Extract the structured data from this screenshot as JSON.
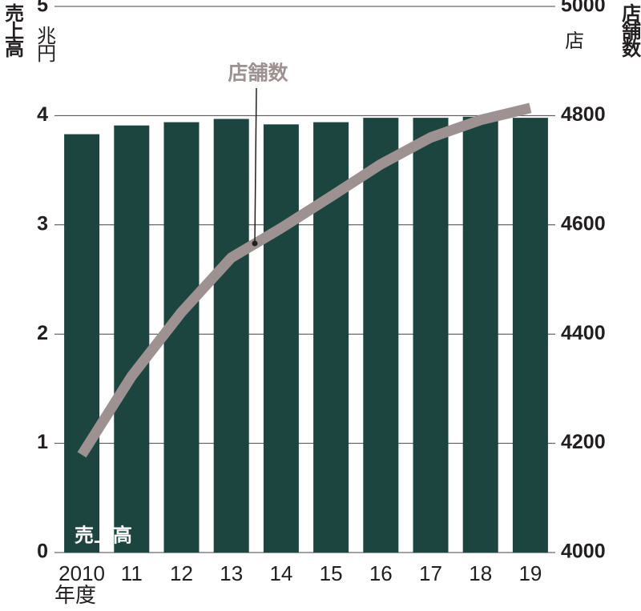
{
  "chart_data": {
    "type": "combo",
    "categories": [
      "2010",
      "11",
      "12",
      "13",
      "14",
      "15",
      "16",
      "17",
      "18",
      "19"
    ],
    "x_label": "年度",
    "y_label": "売上高",
    "y_unit": "兆円",
    "y2_label": "店舗数",
    "y2_unit": "店",
    "ylim": [
      0,
      5
    ],
    "yticks": [
      0,
      1,
      2,
      3,
      4,
      5
    ],
    "y2lim": [
      4000,
      5000
    ],
    "y2ticks": [
      4000,
      4200,
      4400,
      4600,
      4800,
      5000
    ],
    "grid": true,
    "series": [
      {
        "name": "売上高",
        "type": "bar",
        "color": "#1c4540",
        "values": [
          3.83,
          3.91,
          3.94,
          3.97,
          3.92,
          3.94,
          3.98,
          3.98,
          3.99,
          3.98
        ]
      },
      {
        "name": "店舗数",
        "type": "line",
        "axis": "y2",
        "color": "#9d9191",
        "values": [
          4179,
          4323,
          4440,
          4540,
          4594,
          4652,
          4711,
          4760,
          4792,
          4814
        ]
      }
    ]
  }
}
